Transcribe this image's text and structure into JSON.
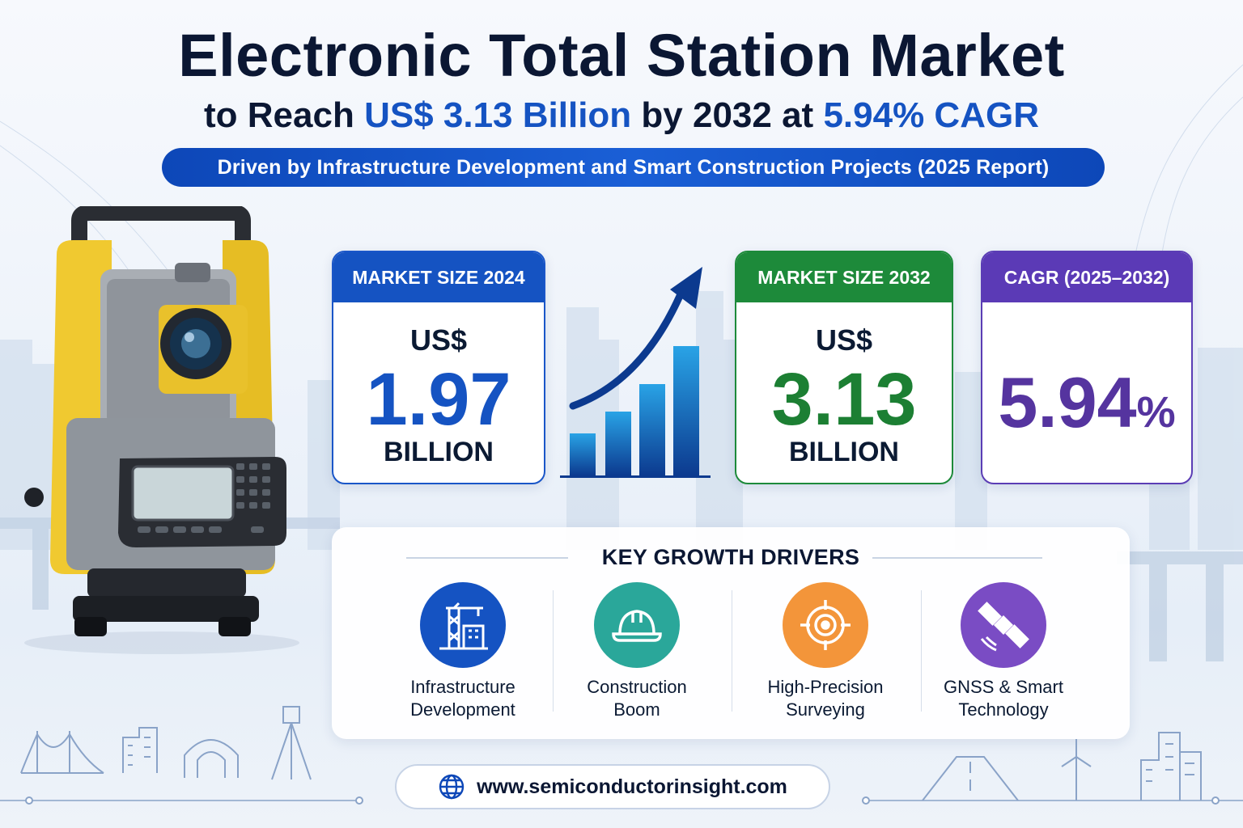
{
  "header": {
    "title": "Electronic Total Station Market",
    "subtitle_pre": "to Reach ",
    "subtitle_value": "US$ 3.13 Billion",
    "subtitle_mid": " by 2032 at ",
    "subtitle_cagr": "5.94% CAGR",
    "banner": "Driven by Infrastructure Development and Smart Construction Projects (2025 Report)"
  },
  "cards": [
    {
      "header": "MARKET SIZE 2024",
      "currency": "US$",
      "value": "1.97",
      "unit": "BILLION",
      "color": "#1553c2"
    },
    {
      "header": "MARKET SIZE 2032",
      "currency": "US$",
      "value": "3.13",
      "unit": "BILLION",
      "color": "#1d8a3a"
    },
    {
      "header": "CAGR (2025–2032)",
      "value": "5.94",
      "unit": "%",
      "color": "#5b3ab6"
    }
  ],
  "growth_icon": {
    "bars": 4,
    "colors": [
      "#29a3e6",
      "#0c3a8f"
    ]
  },
  "drivers": {
    "title": "KEY GROWTH DRIVERS",
    "items": [
      {
        "line1": "Infrastructure",
        "line2": "Development",
        "icon": "infrastructure-icon",
        "color": "#1553c2"
      },
      {
        "line1": "Construction",
        "line2": "Boom",
        "icon": "hard-hat-icon",
        "color": "#2aa79a"
      },
      {
        "line1": "High-Precision",
        "line2": "Surveying",
        "icon": "target-icon",
        "color": "#f3953a"
      },
      {
        "line1": "GNSS & Smart",
        "line2": "Technology",
        "icon": "satellite-icon",
        "color": "#7a4cc4"
      }
    ]
  },
  "footer": {
    "url": "www.semiconductorinsight.com",
    "icon": "globe-icon"
  }
}
